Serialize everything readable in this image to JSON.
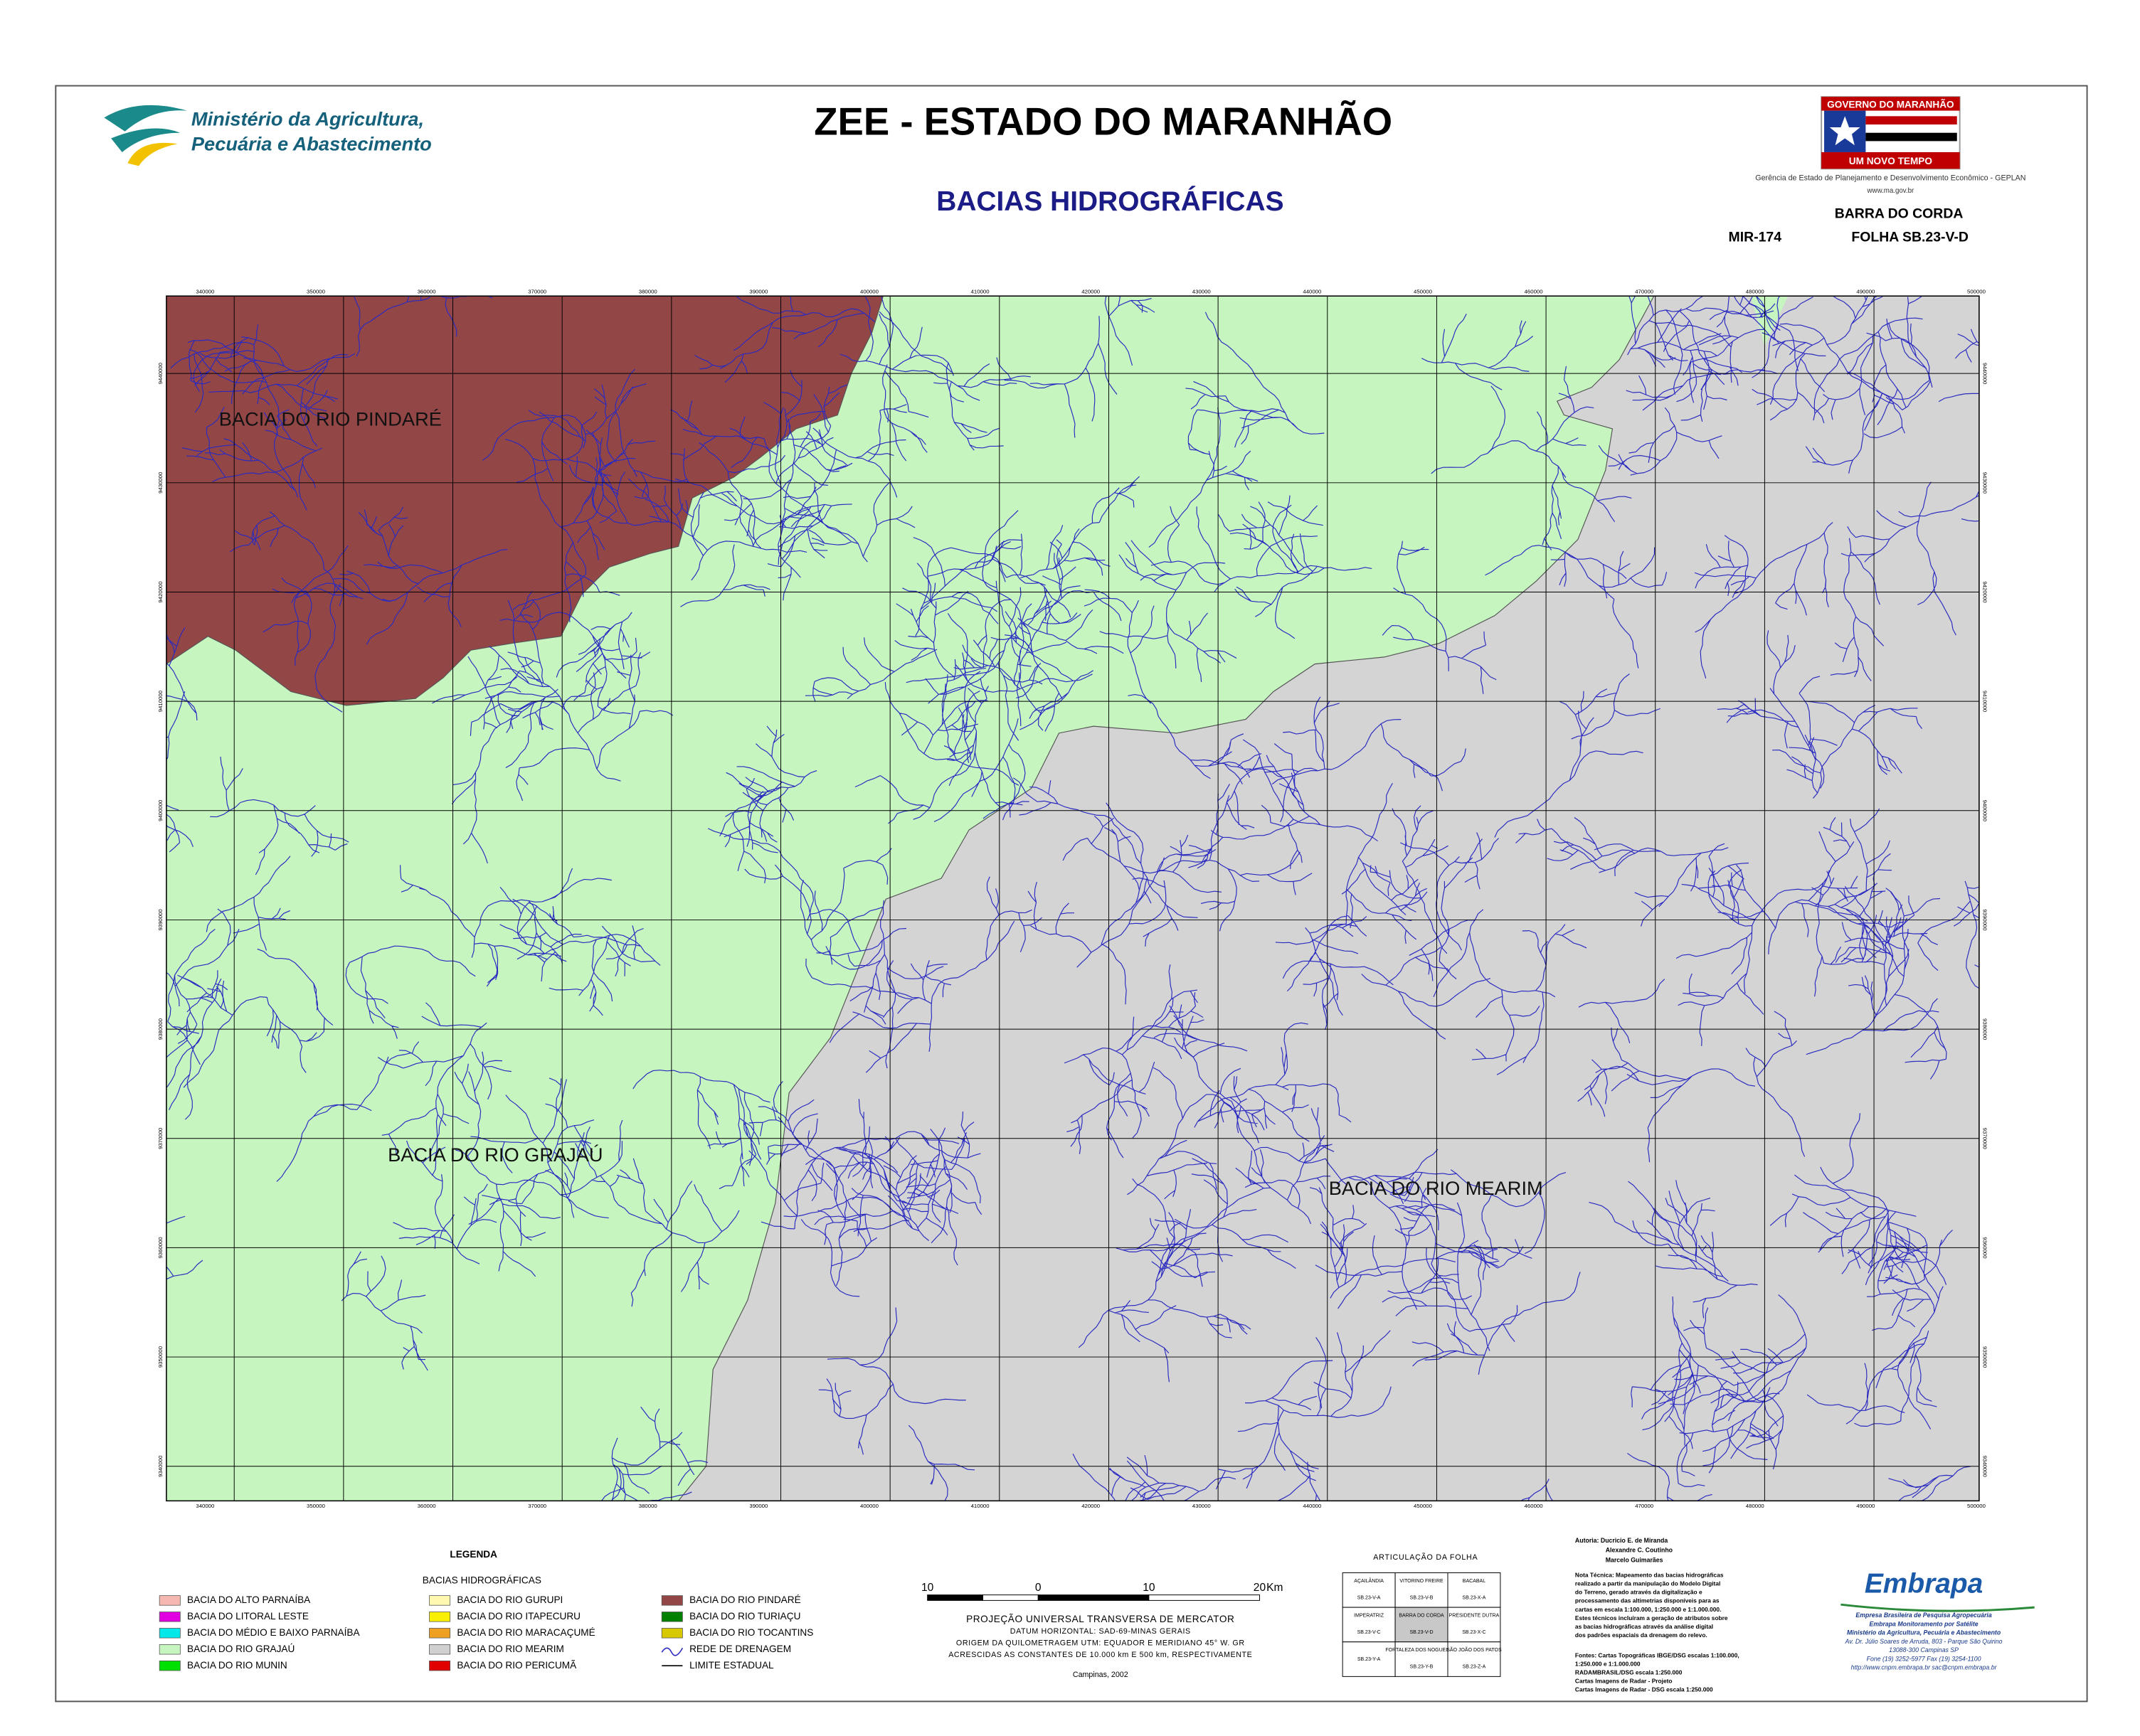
{
  "header": {
    "title": "ZEE - ESTADO DO MARANHÃO",
    "subtitle": "BACIAS HIDROGRÁFICAS",
    "ministry": [
      "Ministério da Agricultura,",
      "Pecuária e Abastecimento"
    ]
  },
  "government": {
    "banner_top": "GOVERNO DO MARANHÃO",
    "banner_bottom": "UM NOVO TEMPO",
    "agency": "Gerência de Estado de Planejamento e Desenvolvimento Econômico - GEPLAN",
    "url": "www.ma.gov.br"
  },
  "sheet": {
    "name": "BARRA DO CORDA",
    "code": "MIR-174",
    "folha": "FOLHA SB.23-V-D"
  },
  "map": {
    "regions": [
      "BACIA DO RIO PINDARÉ",
      "BACIA  DO RIO GRAJAÚ",
      "BACIA  DO RIO MEARIM"
    ],
    "x_labels": [
      340000,
      350000,
      360000,
      370000,
      380000,
      390000,
      400000,
      410000,
      420000,
      430000,
      440000,
      450000,
      460000,
      470000,
      480000,
      490000,
      500000
    ],
    "y_labels": [
      9440000,
      9430000,
      9420000,
      9410000,
      9400000,
      9390000,
      9380000,
      9370000,
      9360000,
      9350000,
      9340000
    ]
  },
  "legend": {
    "title": "LEGENDA",
    "group_title": "BACIAS HIDROGRÁFICAS",
    "columns": [
      [
        {
          "label": "BACIA DO ALTO PARNAÍBA",
          "color": "#f4b8b0"
        },
        {
          "label": "BACIA DO LITORAL LESTE",
          "color": "#e000e0"
        },
        {
          "label": "BACIA DO MÉDIO E BAIXO PARNAÍBA",
          "color": "#00e8e8"
        },
        {
          "label": "BACIA DO RIO GRAJAÚ",
          "color": "#c6f5c0"
        },
        {
          "label": "BACIA DO RIO MUNIN",
          "color": "#00e000"
        }
      ],
      [
        {
          "label": "BACIA DO RIO GURUPI",
          "color": "#fff8b0"
        },
        {
          "label": "BACIA DO RIO ITAPECURU",
          "color": "#f8f000"
        },
        {
          "label": "BACIA DO RIO MARACAÇUMÉ",
          "color": "#f0a020"
        },
        {
          "label": "BACIA DO RIO MEARIM",
          "color": "#d0d0d0"
        },
        {
          "label": "BACIA DO RIO PERICUMÃ",
          "color": "#e00000"
        }
      ],
      [
        {
          "label": "BACIA DO RIO PINDARÉ",
          "color": "#934646"
        },
        {
          "label": "BACIA DO RIO TURIAÇU",
          "color": "#008000"
        },
        {
          "label": "BACIA DO RIO TOCANTINS",
          "color": "#d8c800"
        }
      ]
    ],
    "drainage": {
      "label": "REDE DE DRENAGEM",
      "color": "#2a2ac0"
    },
    "boundary": {
      "label": "LIMITE ESTADUAL",
      "color": "#000000"
    }
  },
  "scale": {
    "labels": [
      10,
      0,
      10,
      20
    ],
    "unit": "Km",
    "notes": [
      "PROJEÇÃO UNIVERSAL TRANSVERSA DE MERCATOR",
      "DATUM HORIZONTAL: SAD-69-MINAS GERAIS",
      "ORIGEM DA QUILOMETRAGEM UTM: EQUADOR E MERIDIANO 45° W. GR",
      "ACRESCIDAS AS CONSTANTES DE 10.000 km E 500 km, RESPECTIVAMENTE"
    ],
    "place": "Campinas, 2002"
  },
  "articulation": {
    "title": "ARTICULAÇÃO DA FOLHA",
    "rows": [
      [
        [
          "AÇAILÂNDIA",
          "SB.23-V-A"
        ],
        [
          "VITORINO FREIRE",
          "SB.23-V-B"
        ],
        [
          "BACABAL",
          "SB.23-X-A"
        ]
      ],
      [
        [
          "IMPERATRIZ",
          "SB.23-V-C"
        ],
        [
          "BARRA DO CORDA",
          "SB.23-V-D"
        ],
        [
          "PRESIDENTE DUTRA",
          "SB.23-X-C"
        ]
      ],
      [
        [
          "SB.23-Y-A"
        ],
        [
          "FORTALEZA DOS NOGUEIRAS",
          "SB.23-Y-B"
        ],
        [
          "SÃO JOÃO DOS PATOS",
          "SB.23-Z-A"
        ]
      ]
    ]
  },
  "credits": {
    "authors": [
      "Autoria: Ducricio E. de Miranda",
      "Alexandre C. Coutinho",
      "Marcelo Guimarães"
    ],
    "note": [
      "Nota Técnica: Mapeamento das bacias hidrográficas",
      "realizado a partir da manipulação do Modelo Digital",
      "do Terreno, gerado através da digitalização e",
      "processamento das altimetrias disponíveis para as",
      "cartas em escala 1:100.000, 1:250.000 e 1:1.000.000.",
      "Estes técnicos incluíram a geração de atributos sobre",
      "as bacias hidrográficas através da análise digital",
      "dos padrões espaciais da drenagem do relevo."
    ],
    "sources": [
      "Fontes: Cartas Topográficas IBGE/DSG escalas 1:100.000,",
      "1:250.000 e 1:1.000.000",
      "RADAMBRASIL/DSG escala 1:250.000",
      "Cartas Imagens de Radar - Projeto",
      "Cartas Imagens de Radar - DSG escala 1:250.000"
    ]
  },
  "embrapa": {
    "logo": "Embrapa",
    "lines": [
      "Empresa Brasileira de Pesquisa Agropecuária",
      "Embrapa Monitoramento por Satélite",
      "Ministério da Agricultura, Pecuária e Abastecimento",
      "Av. Dr. Júlio Soares de Arruda, 803 - Parque São Quirino",
      "13088-300 Campinas SP",
      "Fone (19) 3252-5977 Fax (19) 3254-1100",
      "http://www.cnpm.embrapa.br  sac@cnpm.embrapa.br"
    ]
  }
}
